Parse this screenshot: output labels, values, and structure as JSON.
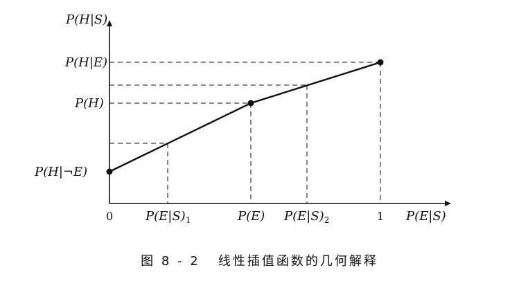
{
  "axes": {
    "y_label": "P(H|S)",
    "x_label": "P(E|S)"
  },
  "y_ticks": {
    "p_h_given_e": "P(H|E)",
    "p_h": "P(H)",
    "p_h_given_not_e": "P(H|¬E)"
  },
  "x_ticks": {
    "zero": "0",
    "p_e_s_1": {
      "main": "P(E|S)",
      "sub": "1"
    },
    "p_e": "P(E)",
    "p_e_s_2": {
      "main": "P(E|S)",
      "sub": "2"
    },
    "one": "1"
  },
  "caption": {
    "figure_no": "图 8 - 2",
    "title": "线性插值函数的几何解释"
  },
  "colors": {
    "ink": "#111111"
  }
}
